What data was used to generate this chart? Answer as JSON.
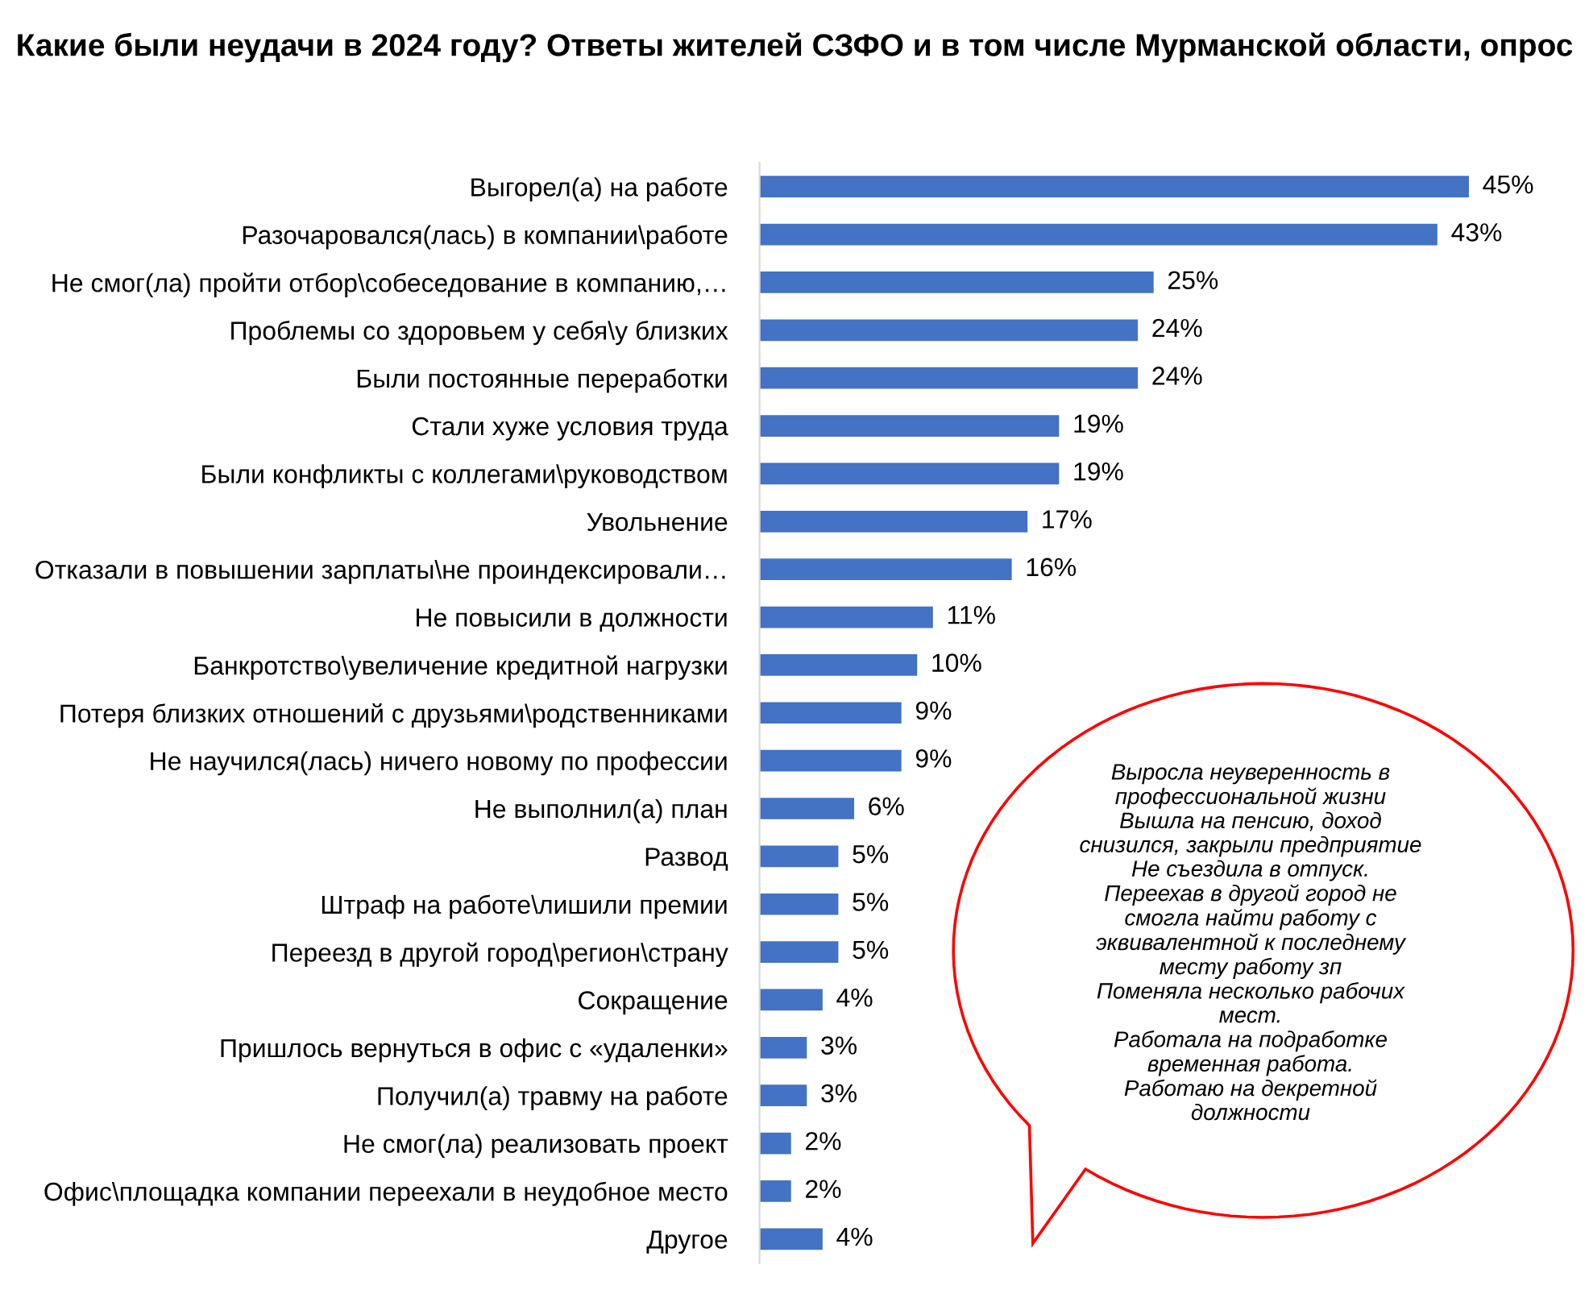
{
  "chart_data": {
    "type": "bar",
    "orientation": "horizontal",
    "relative": false,
    "title": "Какие были неудачи в 2024 году? Ответы жителей СЗФО и в том числе Мурманской области, опрос",
    "categories": [
      "Выгорел(а) на работе",
      "Разочаровался(лась) в компании\\работе",
      "Не смог(ла) пройти отбор\\собеседование в компанию,…",
      "Проблемы со здоровьем у себя\\у близких",
      "Были постоянные переработки",
      "Стали хуже условия труда",
      "Были конфликты с коллегами\\руководством",
      "Увольнение",
      "Отказали в повышении зарплаты\\не проиндексировали…",
      "Не повысили в должности",
      "Банкротство\\увеличение кредитной нагрузки",
      "Потеря близких отношений с друзьями\\родственниками",
      "Не научился(лась) ничего новому по профессии",
      "Не выполнил(а) план",
      "Развод",
      "Штраф на работе\\лишили премии",
      "Переезд в другой город\\регион\\страну",
      "Сокращение",
      "Пришлось вернуться в офис с «удаленки»",
      "Получил(а) травму на работе",
      "Не смог(ла) реализовать проект",
      "Офис\\площадка компании переехали в неудобное место",
      "Другое"
    ],
    "values": [
      45,
      43,
      25,
      24,
      24,
      19,
      19,
      17,
      16,
      11,
      10,
      9,
      9,
      6,
      5,
      5,
      5,
      4,
      3,
      3,
      2,
      2,
      4
    ],
    "value_labels": [
      "45%",
      "43%",
      "25%",
      "24%",
      "24%",
      "19%",
      "19%",
      "17%",
      "16%",
      "11%",
      "10%",
      "9%",
      "9%",
      "6%",
      "5%",
      "5%",
      "5%",
      "4%",
      "3%",
      "3%",
      "2%",
      "2%",
      "4%"
    ],
    "color": "#4472c4",
    "annotations": [
      "Выросла неуверенность в\nпрофессиональной жизни\nВышла на пенсию, доход\nснизился, закрыли предприятие\nНе съездила в отпуск.\nПереехав в другой город не\nсмогла найти работу с\nэквивалентной к последнему\nместу работу зп\nПоменяла несколько рабочих\nмест.\nРаботала на подработке\nвременная работа.\nРаботаю на декретной\nдолжности"
    ],
    "grid": false,
    "legend": false
  }
}
